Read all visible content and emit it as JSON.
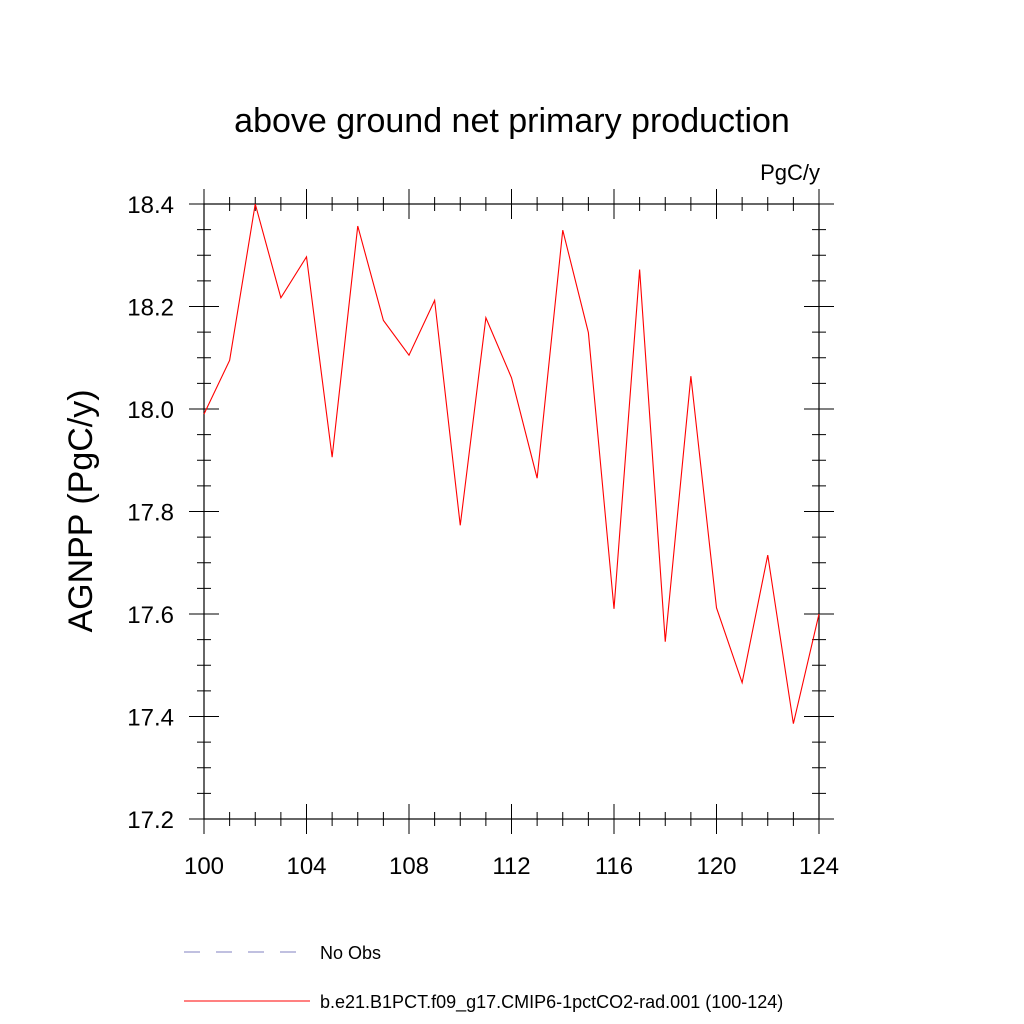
{
  "chart_data": {
    "type": "line",
    "title": "above ground net primary production",
    "units_label": "PgC/y",
    "xlabel": "",
    "ylabel": "AGNPP  (PgC/y)",
    "xlim": [
      100,
      124
    ],
    "ylim": [
      17.2,
      18.4
    ],
    "x_ticks": [
      100,
      104,
      108,
      112,
      116,
      120,
      124
    ],
    "x_tick_labels": [
      "100",
      "104",
      "108",
      "112",
      "116",
      "120",
      "124"
    ],
    "y_ticks": [
      17.2,
      17.4,
      17.6,
      17.8,
      18.0,
      18.2,
      18.4
    ],
    "y_tick_labels": [
      "17.2",
      "17.4",
      "17.6",
      "17.8",
      "18.0",
      "18.2",
      "18.4"
    ],
    "grid": false,
    "series": [
      {
        "name": "b.e21.B1PCT.f09_g17.CMIP6-1pctCO2-rad.001 (100-124)",
        "color": "#ff0000",
        "x": [
          100,
          101,
          102,
          103,
          104,
          105,
          106,
          107,
          108,
          109,
          110,
          111,
          112,
          113,
          114,
          115,
          116,
          117,
          118,
          119,
          120,
          121,
          122,
          123,
          124
        ],
        "values": [
          17.99,
          18.095,
          18.4,
          18.217,
          18.297,
          17.906,
          18.357,
          18.173,
          18.105,
          18.212,
          17.773,
          18.178,
          18.061,
          17.865,
          18.349,
          18.149,
          17.61,
          18.272,
          17.546,
          18.064,
          17.612,
          17.466,
          17.715,
          17.386,
          17.6
        ]
      }
    ],
    "legend": {
      "placement": "bottom",
      "entries": [
        {
          "label": "No Obs",
          "color": "#8080c0",
          "style": "dashed"
        },
        {
          "label": "b.e21.B1PCT.f09_g17.CMIP6-1pctCO2-rad.001 (100-124)",
          "color": "#ff0000",
          "style": "solid"
        }
      ]
    }
  }
}
